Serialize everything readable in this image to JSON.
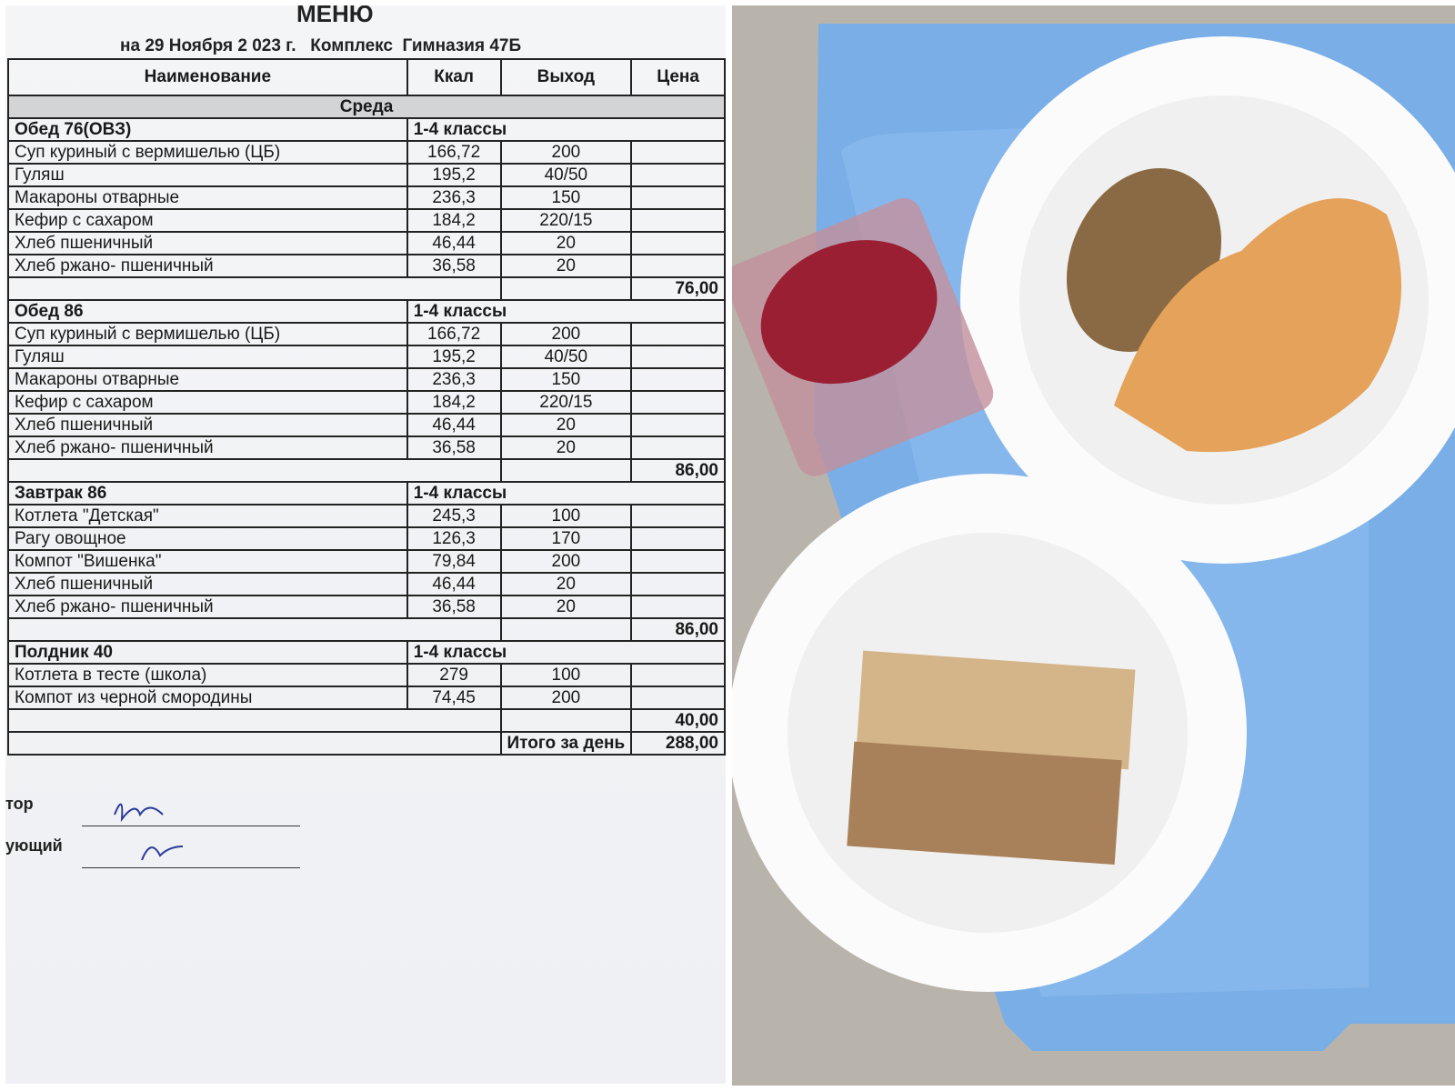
{
  "header": {
    "title": "МЕНЮ",
    "subtitle": "на 29 Ноября 2 023 г.   Комплекс  Гимназия 47Б"
  },
  "table": {
    "columns": [
      "Наименование",
      "Ккал",
      "Выход",
      "Цена"
    ],
    "day": "Среда",
    "sections": [
      {
        "name": "Обед 76(ОВЗ)",
        "group": "1-4 классы",
        "items": [
          [
            "Суп куриный с вермишелью (ЦБ)",
            "166,72",
            "200"
          ],
          [
            "Гуляш",
            "195,2",
            "40/50"
          ],
          [
            "Макароны  отварные",
            "236,3",
            "150"
          ],
          [
            "Кефир с сахаром",
            "184,2",
            "220/15"
          ],
          [
            "Хлеб пшеничный",
            "46,44",
            "20"
          ],
          [
            "Хлеб ржано- пшеничный",
            "36,58",
            "20"
          ]
        ],
        "total": "76,00"
      },
      {
        "name": "Обед 86",
        "group": "1-4 классы",
        "items": [
          [
            "Суп куриный с вермишелью (ЦБ)",
            "166,72",
            "200"
          ],
          [
            "Гуляш",
            "195,2",
            "40/50"
          ],
          [
            "Макароны  отварные",
            "236,3",
            "150"
          ],
          [
            "Кефир с сахаром",
            "184,2",
            "220/15"
          ],
          [
            "Хлеб пшеничный",
            "46,44",
            "20"
          ],
          [
            "Хлеб ржано- пшеничный",
            "36,58",
            "20"
          ]
        ],
        "total": "86,00"
      },
      {
        "name": "Завтрак 86",
        "group": "1-4 классы",
        "items": [
          [
            "Котлета \"Детская\"",
            "245,3",
            "100"
          ],
          [
            "Рагу овощное",
            "126,3",
            "170"
          ],
          [
            "Компот \"Вишенка\"",
            "79,84",
            "200"
          ],
          [
            "Хлеб пшеничный",
            "46,44",
            "20"
          ],
          [
            "Хлеб ржано- пшеничный",
            "36,58",
            "20"
          ]
        ],
        "total": "86,00"
      },
      {
        "name": "Полдник 40",
        "group": "1-4 классы",
        "items": [
          [
            "Котлета в тесте (школа)",
            "279",
            "100"
          ],
          [
            "Компот из черной смородины",
            "74,45",
            "200"
          ]
        ],
        "total": "40,00"
      }
    ],
    "day_total_label": "Итого за день",
    "day_total": "288,00"
  },
  "signatures": [
    "тор",
    "ующий"
  ]
}
